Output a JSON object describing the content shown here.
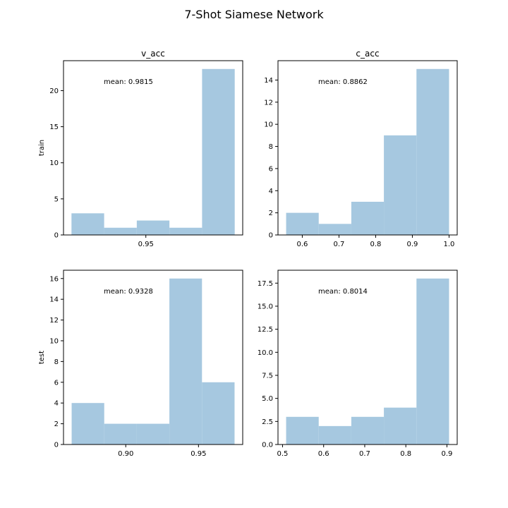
{
  "figure": {
    "title": "7-Shot Siamese Network",
    "bar_color": "#a6c8e0"
  },
  "chart_data": [
    {
      "type": "bar",
      "title": "v_acc",
      "xlabel": "",
      "ylabel": "train",
      "annotation": "mean: 0.9815",
      "bin_edges": [
        0.909,
        0.927,
        0.945,
        0.963,
        0.981,
        0.999
      ],
      "values": [
        3,
        1,
        2,
        1,
        23
      ],
      "xlim": [
        0.9046,
        1.0034
      ],
      "ylim": [
        0,
        24.15
      ],
      "xticks": [
        0.95
      ],
      "xtick_labels": [
        "0.95"
      ],
      "yticks": [
        0,
        5,
        10,
        15,
        20
      ],
      "ytick_labels": [
        "0",
        "5",
        "10",
        "15",
        "20"
      ]
    },
    {
      "type": "bar",
      "title": "c_acc",
      "xlabel": "",
      "ylabel": "",
      "annotation": "mean: 0.8862",
      "bin_edges": [
        0.556,
        0.6448,
        0.7336,
        0.8224,
        0.9112,
        1.0
      ],
      "values": [
        2,
        1,
        3,
        9,
        15
      ],
      "xlim": [
        0.5338,
        1.0222
      ],
      "ylim": [
        0,
        15.75
      ],
      "xticks": [
        0.6,
        0.7,
        0.8,
        0.9,
        1.0
      ],
      "xtick_labels": [
        "0.6",
        "0.7",
        "0.8",
        "0.9",
        "1.0"
      ],
      "yticks": [
        0,
        2,
        4,
        6,
        8,
        10,
        12,
        14
      ],
      "ytick_labels": [
        "0",
        "2",
        "4",
        "6",
        "8",
        "10",
        "12",
        "14"
      ]
    },
    {
      "type": "bar",
      "title": "",
      "xlabel": "",
      "ylabel": "test",
      "annotation": "mean: 0.9328",
      "bin_edges": [
        0.8628,
        0.8852,
        0.9076,
        0.93,
        0.9524,
        0.9748
      ],
      "values": [
        4,
        2,
        2,
        16,
        6
      ],
      "xlim": [
        0.8572,
        0.9804
      ],
      "ylim": [
        0,
        16.8
      ],
      "xticks": [
        0.9,
        0.95
      ],
      "xtick_labels": [
        "0.90",
        "0.95"
      ],
      "yticks": [
        0,
        2,
        4,
        6,
        8,
        10,
        12,
        14,
        16
      ],
      "ytick_labels": [
        "0",
        "2",
        "4",
        "6",
        "8",
        "10",
        "12",
        "14",
        "16"
      ]
    },
    {
      "type": "bar",
      "title": "",
      "xlabel": "",
      "ylabel": "",
      "annotation": "mean: 0.8014",
      "bin_edges": [
        0.5087,
        0.588,
        0.6673,
        0.7466,
        0.8259,
        0.9052
      ],
      "values": [
        3,
        2,
        3,
        4,
        18
      ],
      "xlim": [
        0.4889,
        0.925
      ],
      "ylim": [
        0,
        18.9
      ],
      "xticks": [
        0.5,
        0.6,
        0.7,
        0.8,
        0.9
      ],
      "xtick_labels": [
        "0.5",
        "0.6",
        "0.7",
        "0.8",
        "0.9"
      ],
      "yticks": [
        0,
        2.5,
        5,
        7.5,
        10,
        12.5,
        15,
        17.5
      ],
      "ytick_labels": [
        "0.0",
        "2.5",
        "5.0",
        "7.5",
        "10.0",
        "12.5",
        "15.0",
        "17.5"
      ]
    }
  ]
}
